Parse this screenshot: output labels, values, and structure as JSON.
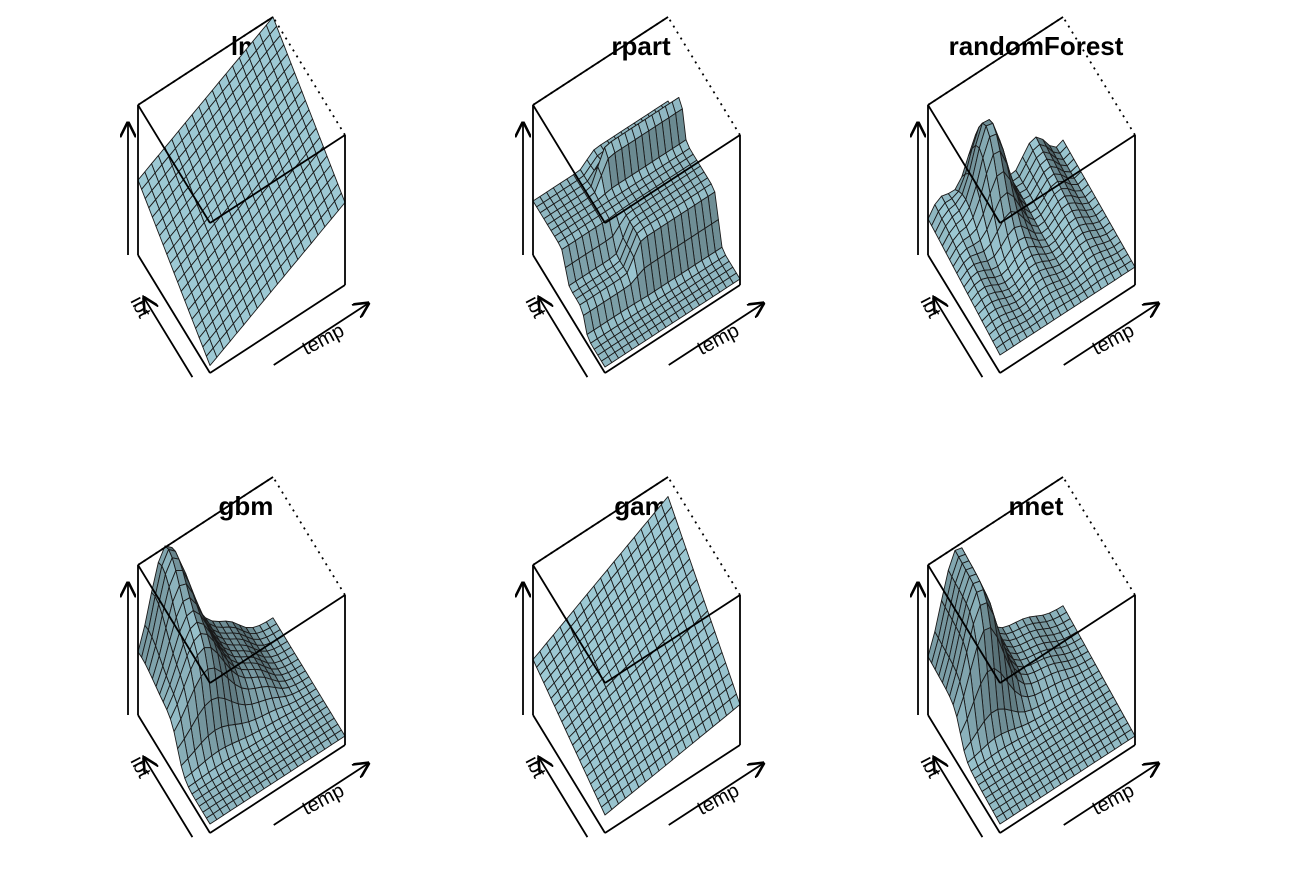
{
  "figure": {
    "layout": "2 rows x 3 columns",
    "surface_color": "#8fb7c1",
    "edge_color": "#1a1a1a",
    "box_color": "#000000"
  },
  "chart_data": [
    {
      "type": "surface3d",
      "title": "lm",
      "xlabel": "temp",
      "ylabel": "ibt",
      "shape": "plane"
    },
    {
      "type": "surface3d",
      "title": "rpart",
      "xlabel": "temp",
      "ylabel": "ibt",
      "shape": "step"
    },
    {
      "type": "surface3d",
      "title": "randomForest",
      "xlabel": "temp",
      "ylabel": "ibt",
      "shape": "peak"
    },
    {
      "type": "surface3d",
      "title": "gbm",
      "xlabel": "temp",
      "ylabel": "ibt",
      "shape": "ridge"
    },
    {
      "type": "surface3d",
      "title": "gam",
      "xlabel": "temp",
      "ylabel": "ibt",
      "shape": "smooth"
    },
    {
      "type": "surface3d",
      "title": "nnet",
      "xlabel": "temp",
      "ylabel": "ibt",
      "shape": "bump"
    }
  ]
}
